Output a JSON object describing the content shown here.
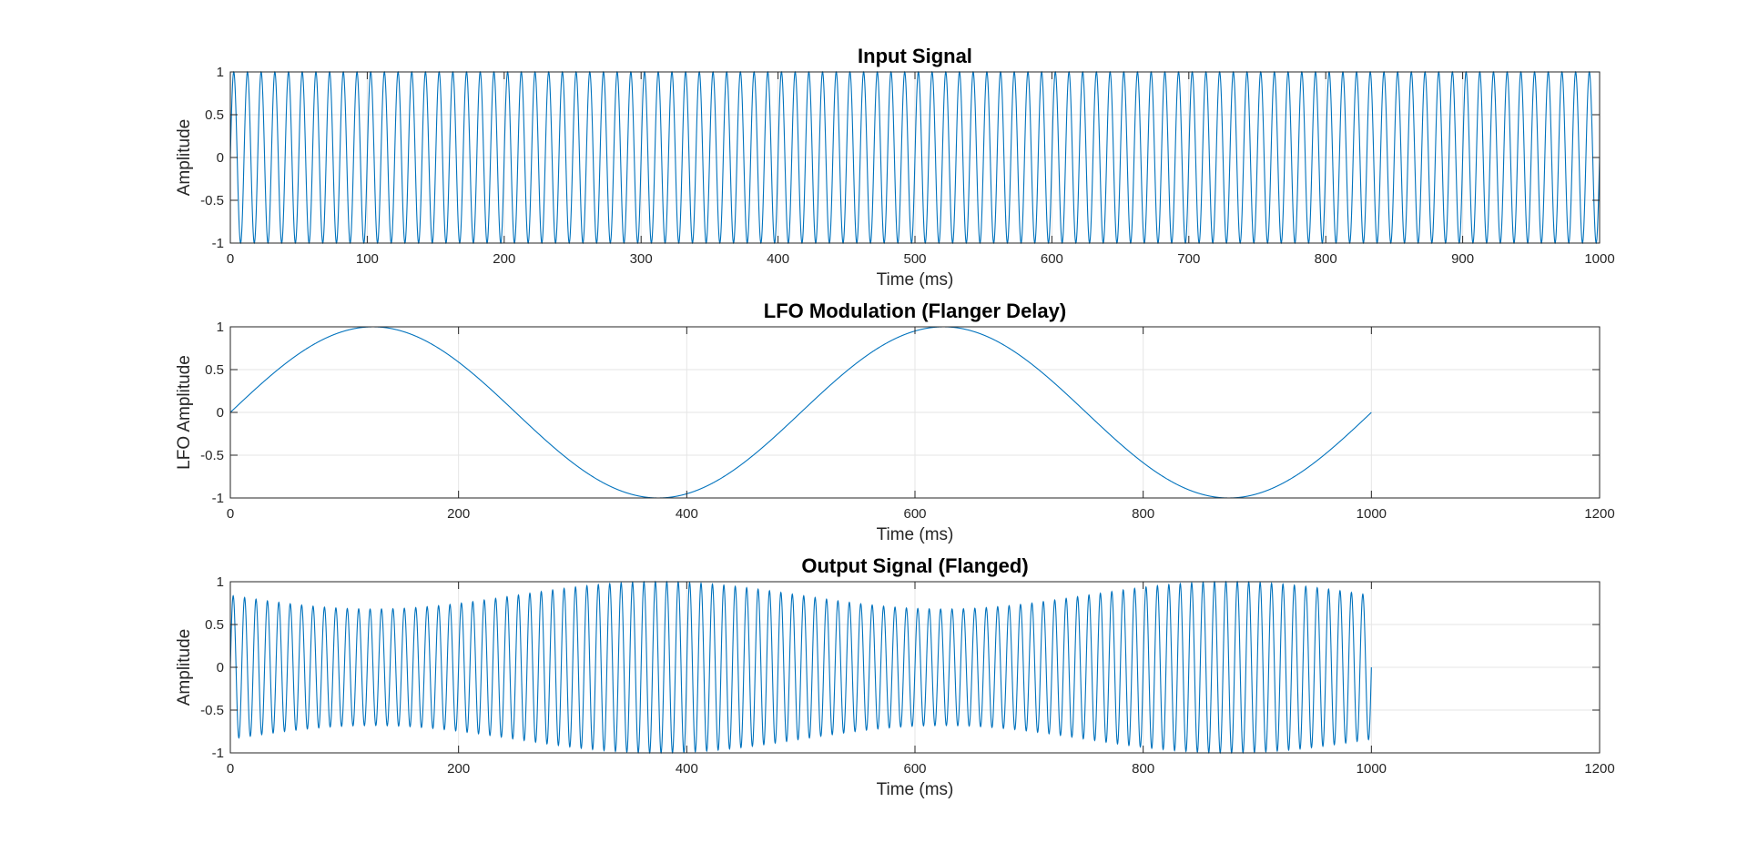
{
  "chart_data": [
    {
      "type": "line",
      "title": "Input Signal",
      "xlabel": "Time (ms)",
      "ylabel": "Amplitude",
      "xlim": [
        0,
        1000
      ],
      "ylim": [
        -1,
        1
      ],
      "xticks": [
        "0",
        "100",
        "200",
        "300",
        "400",
        "500",
        "600",
        "700",
        "800",
        "900",
        "1000"
      ],
      "yticks": [
        "1",
        "0.5",
        "0",
        "-0.5",
        "-1"
      ],
      "grid": true,
      "line_color": "#0072BD",
      "series": [
        {
          "signal": "sine",
          "frequency_hz": 100,
          "amplitude": 1,
          "x_range": [
            0,
            1000
          ]
        }
      ]
    },
    {
      "type": "line",
      "title": "LFO Modulation (Flanger Delay)",
      "xlabel": "Time (ms)",
      "ylabel": "LFO Amplitude",
      "xlim": [
        0,
        1200
      ],
      "ylim": [
        -1,
        1
      ],
      "xticks": [
        "0",
        "200",
        "400",
        "600",
        "800",
        "1000",
        "1200"
      ],
      "yticks": [
        "1",
        "0.5",
        "0",
        "-0.5",
        "-1"
      ],
      "grid": true,
      "line_color": "#0072BD",
      "series": [
        {
          "signal": "sine",
          "frequency_hz": 2,
          "amplitude": 1,
          "x_range": [
            0,
            1000
          ]
        }
      ]
    },
    {
      "type": "line",
      "title": "Output Signal (Flanged)",
      "xlabel": "Time (ms)",
      "ylabel": "Amplitude",
      "xlim": [
        0,
        1200
      ],
      "ylim": [
        -1,
        1
      ],
      "xticks": [
        "0",
        "200",
        "400",
        "600",
        "800",
        "1000",
        "1200"
      ],
      "yticks": [
        "1",
        "0.5",
        "0",
        "-0.5",
        "-1"
      ],
      "grid": true,
      "line_color": "#0072BD",
      "series": [
        {
          "signal": "sine",
          "frequency_hz": 100,
          "x_range": [
            0,
            1000
          ],
          "envelope": {
            "min_amplitude": 0.68,
            "max_amplitude": 1.0,
            "peak_times_ms": [
              375,
              875
            ],
            "trough_times_ms": [
              125,
              625
            ]
          }
        }
      ]
    }
  ]
}
